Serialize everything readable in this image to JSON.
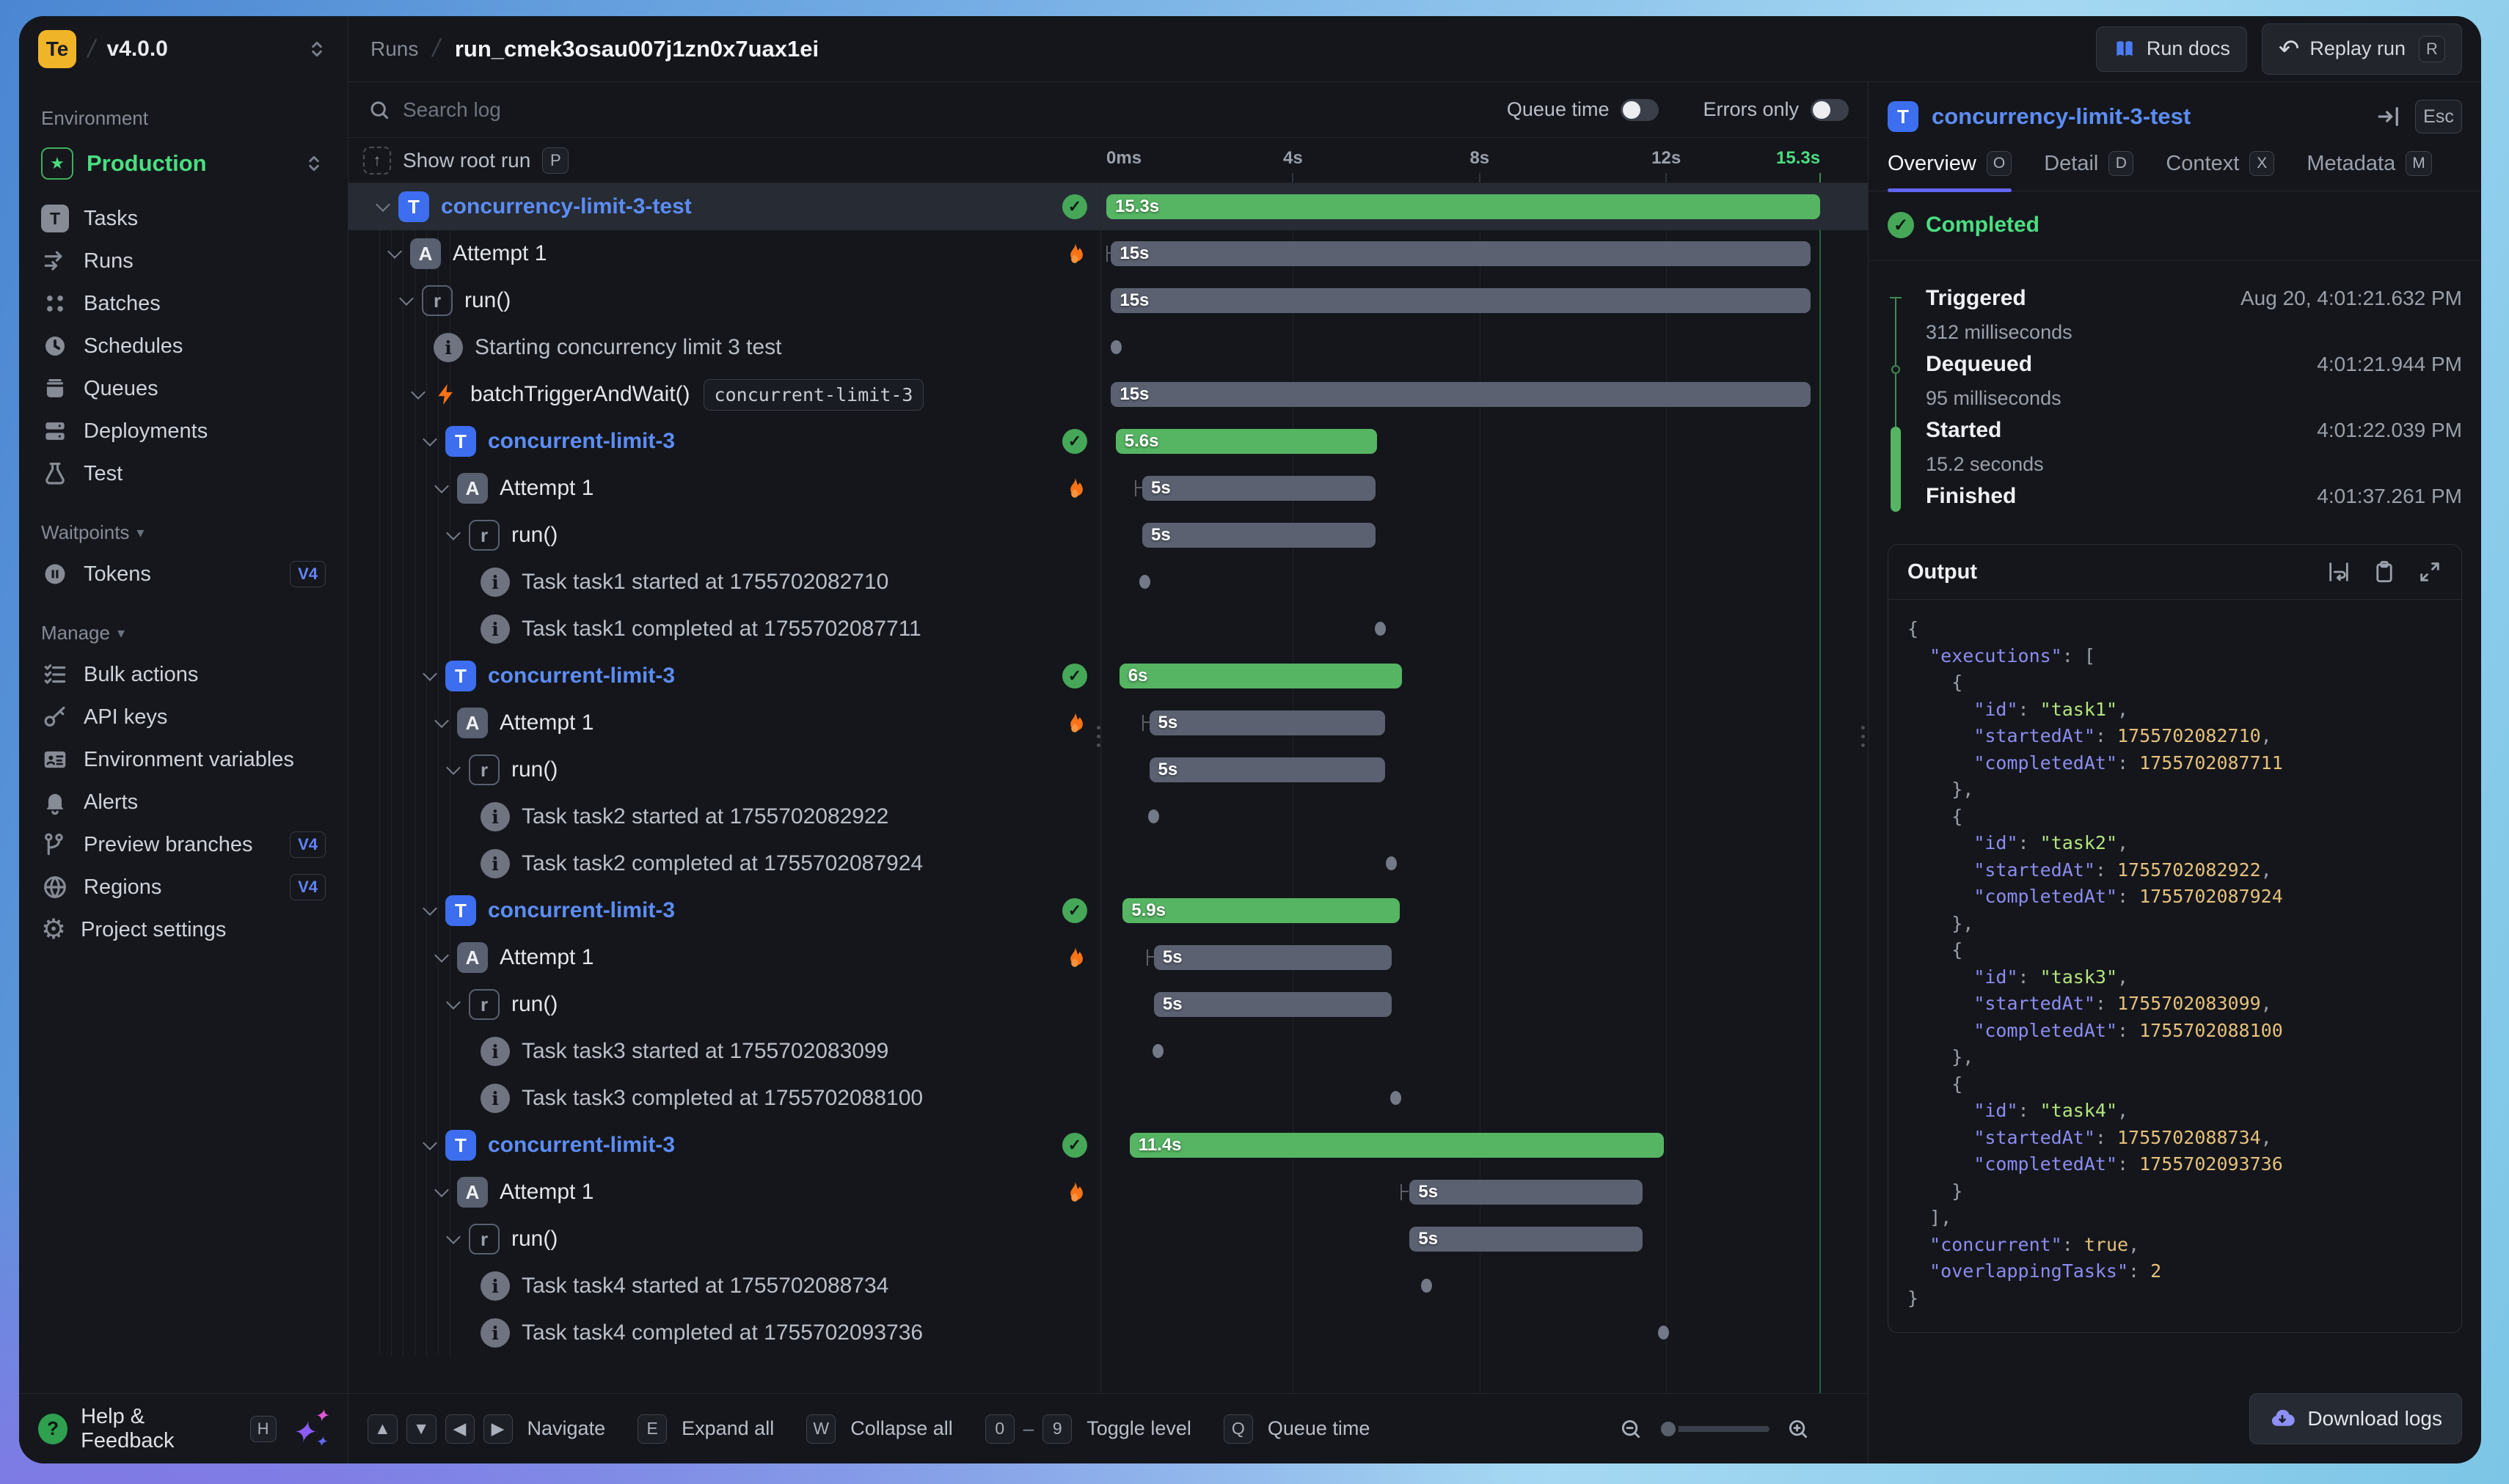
{
  "colors": {
    "accent_blue": "#3d6ef0",
    "task_text": "#5c8df6",
    "green": "#4ade80",
    "bar_green": "#56b563",
    "bar_gray": "#5b6170",
    "flame": "#f97316",
    "tab_underline": "#6366f1",
    "logo_yellow": "#f0b429",
    "v4_badge": "#6284f8",
    "json_key": "#8c8cf0",
    "json_string": "#b3e57d",
    "json_number": "#e5c07b"
  },
  "sidebar": {
    "logo": "Te",
    "version": "v4.0.0",
    "env_section": "Environment",
    "env_name": "Production",
    "sections": [
      {
        "label": null,
        "items": [
          {
            "icon": "tasks-icon",
            "label": "Tasks"
          },
          {
            "icon": "runs-icon",
            "label": "Runs"
          },
          {
            "icon": "batches-icon",
            "label": "Batches"
          },
          {
            "icon": "schedules-icon",
            "label": "Schedules"
          },
          {
            "icon": "queues-icon",
            "label": "Queues"
          },
          {
            "icon": "deployments-icon",
            "label": "Deployments"
          },
          {
            "icon": "test-icon",
            "label": "Test"
          }
        ]
      },
      {
        "label": "Waitpoints",
        "items": [
          {
            "icon": "tokens-icon",
            "label": "Tokens",
            "badge": "V4"
          }
        ]
      },
      {
        "label": "Manage",
        "items": [
          {
            "icon": "bulk-actions-icon",
            "label": "Bulk actions"
          },
          {
            "icon": "api-keys-icon",
            "label": "API keys"
          },
          {
            "icon": "environment-variables-icon",
            "label": "Environment variables"
          },
          {
            "icon": "alerts-icon",
            "label": "Alerts"
          },
          {
            "icon": "preview-branches-icon",
            "label": "Preview branches",
            "badge": "V4"
          },
          {
            "icon": "regions-icon",
            "label": "Regions",
            "badge": "V4"
          },
          {
            "icon": "project-settings-icon",
            "label": "Project settings"
          }
        ]
      }
    ],
    "help_label": "Help & Feedback",
    "help_kbd": "H"
  },
  "topbar": {
    "breadcrumb_root": "Runs",
    "run_id": "run_cmek3osau007j1zn0x7uax1ei",
    "run_docs_label": "Run docs",
    "replay_label": "Replay run",
    "replay_kbd": "R"
  },
  "main": {
    "search_placeholder": "Search log",
    "queue_time_label": "Queue time",
    "errors_only_label": "Errors only",
    "show_root_label": "Show root run",
    "show_root_kbd": "P",
    "axis": {
      "total_seconds": 15.3,
      "ticks": [
        {
          "label": "0ms",
          "t": 0,
          "align": "left"
        },
        {
          "label": "4s",
          "t": 4,
          "align": "center"
        },
        {
          "label": "8s",
          "t": 8,
          "align": "center"
        },
        {
          "label": "12s",
          "t": 12,
          "align": "center"
        },
        {
          "label": "15.3s",
          "t": 15.3,
          "align": "right",
          "accent": true
        }
      ]
    },
    "rows": [
      {
        "level": 0,
        "kind": "task",
        "chevron": true,
        "label": "concurrency-limit-3-test",
        "status": "success",
        "selected": true,
        "bar": {
          "start": 0,
          "dur": 15.3,
          "label": "15.3s",
          "color": "green"
        }
      },
      {
        "level": 1,
        "kind": "attempt",
        "chevron": true,
        "label": "Attempt 1",
        "status": "flame",
        "bar": {
          "start": 0.1,
          "dur": 15.0,
          "label": "15s",
          "color": "gray",
          "tick": 0.0
        }
      },
      {
        "level": 2,
        "kind": "run",
        "chevron": true,
        "label": "run()",
        "bar": {
          "start": 0.1,
          "dur": 15.0,
          "label": "15s",
          "color": "gray"
        }
      },
      {
        "level": 3,
        "kind": "log",
        "label": "Starting concurrency limit 3 test",
        "dot": 0.2
      },
      {
        "level": 3,
        "kind": "batch",
        "chevron": true,
        "label": "batchTriggerAndWait()",
        "tag": "concurrent-limit-3",
        "bar": {
          "start": 0.1,
          "dur": 15.0,
          "label": "15s",
          "color": "gray"
        }
      },
      {
        "level": 4,
        "kind": "task",
        "chevron": true,
        "label": "concurrent-limit-3",
        "status": "success",
        "bar": {
          "start": 0.2,
          "dur": 5.6,
          "label": "5.6s",
          "color": "green"
        }
      },
      {
        "level": 5,
        "kind": "attempt",
        "chevron": true,
        "label": "Attempt 1",
        "status": "flame",
        "bar": {
          "start": 0.77,
          "dur": 5.0,
          "label": "5s",
          "color": "gray",
          "tick": 0.61
        }
      },
      {
        "level": 6,
        "kind": "run",
        "chevron": true,
        "label": "run()",
        "bar": {
          "start": 0.77,
          "dur": 5.0,
          "label": "5s",
          "color": "gray"
        }
      },
      {
        "level": 7,
        "kind": "log",
        "label": "Task task1 started at 1755702082710",
        "dot": 0.82
      },
      {
        "level": 7,
        "kind": "log",
        "label": "Task task1 completed at 1755702087711",
        "dot": 5.86
      },
      {
        "level": 4,
        "kind": "task",
        "chevron": true,
        "label": "concurrent-limit-3",
        "status": "success",
        "bar": {
          "start": 0.28,
          "dur": 6.05,
          "label": "6s",
          "color": "green"
        }
      },
      {
        "level": 5,
        "kind": "attempt",
        "chevron": true,
        "label": "Attempt 1",
        "status": "flame",
        "bar": {
          "start": 0.92,
          "dur": 5.05,
          "label": "5s",
          "color": "gray",
          "tick": 0.77
        }
      },
      {
        "level": 6,
        "kind": "run",
        "chevron": true,
        "label": "run()",
        "bar": {
          "start": 0.92,
          "dur": 5.05,
          "label": "5s",
          "color": "gray"
        }
      },
      {
        "level": 7,
        "kind": "log",
        "label": "Task task2 started at 1755702082922",
        "dot": 1.0
      },
      {
        "level": 7,
        "kind": "log",
        "label": "Task task2 completed at 1755702087924",
        "dot": 6.1
      },
      {
        "level": 4,
        "kind": "task",
        "chevron": true,
        "label": "concurrent-limit-3",
        "status": "success",
        "bar": {
          "start": 0.35,
          "dur": 5.94,
          "label": "5.9s",
          "color": "green"
        }
      },
      {
        "level": 5,
        "kind": "attempt",
        "chevron": true,
        "label": "Attempt 1",
        "status": "flame",
        "bar": {
          "start": 1.02,
          "dur": 5.1,
          "label": "5s",
          "color": "gray",
          "tick": 0.86
        }
      },
      {
        "level": 6,
        "kind": "run",
        "chevron": true,
        "label": "run()",
        "bar": {
          "start": 1.02,
          "dur": 5.1,
          "label": "5s",
          "color": "gray"
        }
      },
      {
        "level": 7,
        "kind": "log",
        "label": "Task task3 started at 1755702083099",
        "dot": 1.1
      },
      {
        "level": 7,
        "kind": "log",
        "label": "Task task3 completed at 1755702088100",
        "dot": 6.2
      },
      {
        "level": 4,
        "kind": "task",
        "chevron": true,
        "label": "concurrent-limit-3",
        "status": "success",
        "bar": {
          "start": 0.5,
          "dur": 11.45,
          "label": "11.4s",
          "color": "green"
        }
      },
      {
        "level": 5,
        "kind": "attempt",
        "chevron": true,
        "label": "Attempt 1",
        "status": "flame",
        "bar": {
          "start": 6.5,
          "dur": 5.0,
          "label": "5s",
          "color": "gray",
          "tick": 6.3
        }
      },
      {
        "level": 6,
        "kind": "run",
        "chevron": true,
        "label": "run()",
        "bar": {
          "start": 6.5,
          "dur": 5.0,
          "label": "5s",
          "color": "gray"
        }
      },
      {
        "level": 7,
        "kind": "log",
        "label": "Task task4 started at 1755702088734",
        "dot": 6.85
      },
      {
        "level": 7,
        "kind": "log",
        "label": "Task task4 completed at 1755702093736",
        "dot": 11.93
      }
    ],
    "shortcuts": [
      {
        "parts": [
          [
            "kbd",
            "▲"
          ],
          [
            "kbd",
            "▼"
          ],
          [
            "kbd",
            "◀"
          ],
          [
            "kbd",
            "▶"
          ]
        ],
        "label": "Navigate"
      },
      {
        "parts": [
          [
            "kbd",
            "E"
          ]
        ],
        "label": "Expand all"
      },
      {
        "parts": [
          [
            "kbd",
            "W"
          ]
        ],
        "label": "Collapse all"
      },
      {
        "parts": [
          [
            "kbd",
            "0"
          ],
          [
            "text",
            "–"
          ],
          [
            "kbd",
            "9"
          ]
        ],
        "label": "Toggle level"
      },
      {
        "parts": [
          [
            "kbd",
            "Q"
          ]
        ],
        "label": "Queue time"
      }
    ]
  },
  "inspector": {
    "title": "concurrency-limit-3-test",
    "esc_label": "Esc",
    "tabs": [
      {
        "label": "Overview",
        "kbd": "O",
        "active": true
      },
      {
        "label": "Detail",
        "kbd": "D"
      },
      {
        "label": "Context",
        "kbd": "X"
      },
      {
        "label": "Metadata",
        "kbd": "M"
      }
    ],
    "status": "Completed",
    "events": [
      {
        "label": "Triggered",
        "value": "Aug 20, 4:01:21.632 PM",
        "sub": "312 milliseconds",
        "marker": "tick"
      },
      {
        "label": "Dequeued",
        "value": "4:01:21.944 PM",
        "sub": "95 milliseconds",
        "marker": "circle"
      },
      {
        "label": "Started",
        "value": "4:01:22.039 PM",
        "sub": "15.2 seconds",
        "marker": "bar-start"
      },
      {
        "label": "Finished",
        "value": "4:01:37.261 PM",
        "marker": "bar-end"
      }
    ],
    "output_title": "Output",
    "output_lines": [
      "{",
      "  \"executions\": [",
      "    {",
      "      \"id\": \"task1\",",
      "      \"startedAt\": 1755702082710,",
      "      \"completedAt\": 1755702087711",
      "    },",
      "    {",
      "      \"id\": \"task2\",",
      "      \"startedAt\": 1755702082922,",
      "      \"completedAt\": 1755702087924",
      "    },",
      "    {",
      "      \"id\": \"task3\",",
      "      \"startedAt\": 1755702083099,",
      "      \"completedAt\": 1755702088100",
      "    },",
      "    {",
      "      \"id\": \"task4\",",
      "      \"startedAt\": 1755702088734,",
      "      \"completedAt\": 1755702093736",
      "    }",
      "  ],",
      "  \"concurrent\": true,",
      "  \"overlappingTasks\": 2",
      "}"
    ],
    "download_label": "Download logs"
  }
}
